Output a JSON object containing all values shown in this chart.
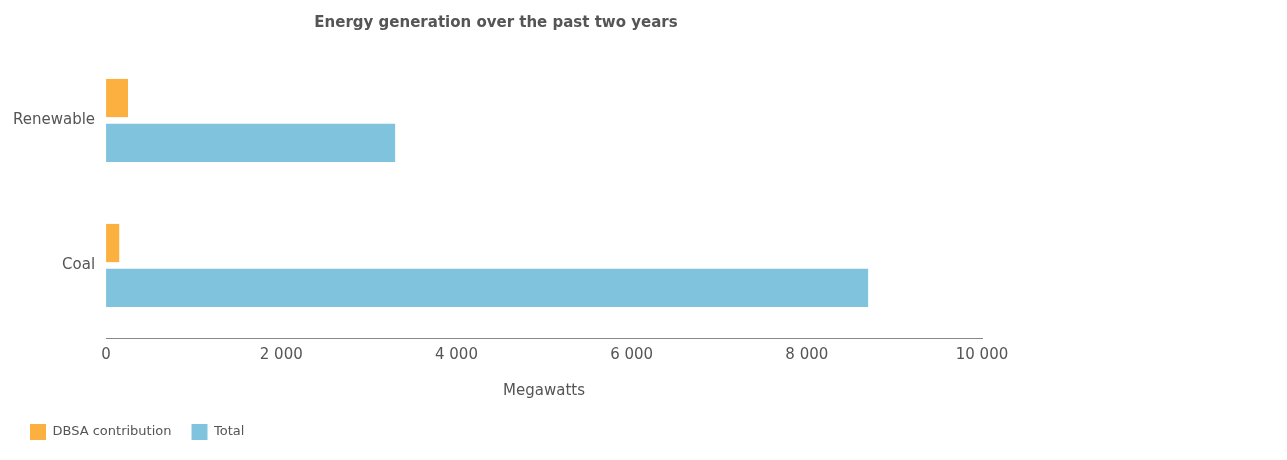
{
  "chart_data": {
    "type": "bar",
    "orientation": "horizontal",
    "title": "Energy generation over the past two years",
    "xlabel": "Megawatts",
    "categories": [
      "Renewable",
      "Coal"
    ],
    "series": [
      {
        "name": "DBSA contribution",
        "color": "#fbb040",
        "values": [
          250,
          150
        ]
      },
      {
        "name": "Total",
        "color": "#7fc3dd",
        "values": [
          3300,
          8700
        ]
      }
    ],
    "xlim": [
      0,
      10000
    ],
    "xticks": [
      0,
      {
        "value": 2000,
        "label": "2 000"
      },
      {
        "value": 4000,
        "label": "4 000"
      },
      {
        "value": 6000,
        "label": "6 000"
      },
      {
        "value": 8000,
        "label": "8 000"
      },
      {
        "value": 10000,
        "label": "10 000"
      }
    ],
    "grid": false,
    "legend": "bottom left"
  }
}
